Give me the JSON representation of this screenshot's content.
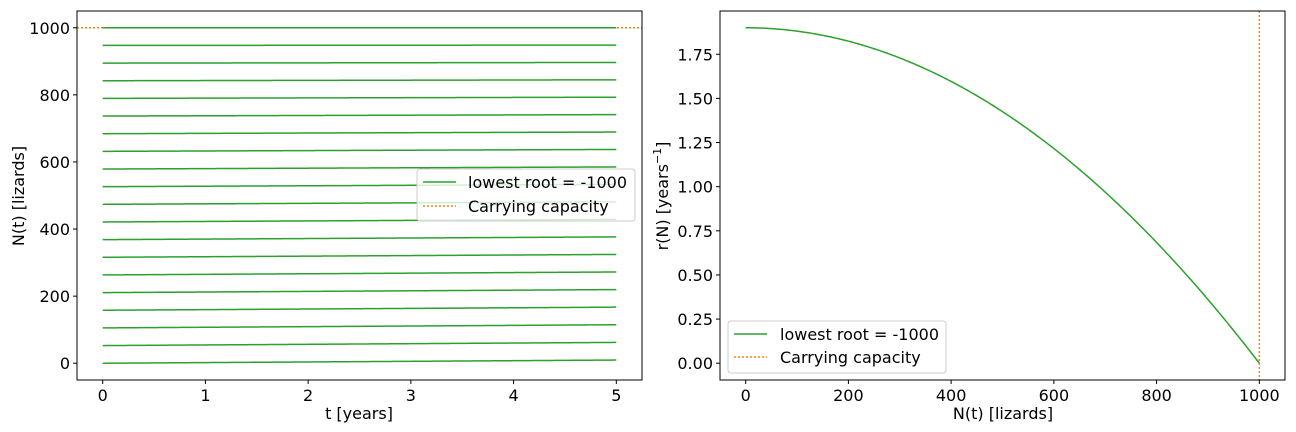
{
  "colors": {
    "model": "#2ca02c",
    "capacity": "#ff7f0e"
  },
  "chart_data": [
    {
      "type": "line",
      "xlabel": "t [years]",
      "ylabel": "N(t) [lizards]",
      "xlim": [
        -0.25,
        5.25
      ],
      "ylim": [
        -50,
        1050
      ],
      "xticks": [
        0,
        1,
        2,
        3,
        4,
        5
      ],
      "yticks": [
        0,
        200,
        400,
        600,
        800,
        1000
      ],
      "grid": false,
      "legend_position": "center-right",
      "legend": [
        "lowest root = -1000",
        "Carrying capacity"
      ],
      "model": {
        "r_max": 1.9,
        "K": 1000,
        "lowest_root": -1000
      },
      "t_range": [
        0,
        5
      ],
      "initial_populations": [
        0,
        52.6,
        105.3,
        157.9,
        210.5,
        263.2,
        315.8,
        368.4,
        421.1,
        473.7,
        526.3,
        578.9,
        631.6,
        684.2,
        736.8,
        789.5,
        842.1,
        894.7,
        947.4,
        1000
      ],
      "carrying_capacity": 1000
    },
    {
      "type": "line",
      "xlabel": "N(t) [lizards]",
      "ylabel": "r(N) [years",
      "ylabel_sup": "−1",
      "ylabel_end": "]",
      "xlim": [
        -50,
        1050
      ],
      "ylim": [
        -0.095,
        1.995
      ],
      "xticks": [
        0,
        200,
        400,
        600,
        800,
        1000
      ],
      "yticks": [
        "0.00",
        "0.25",
        "0.50",
        "0.75",
        "1.00",
        "1.25",
        "1.50",
        "1.75"
      ],
      "grid": false,
      "legend_position": "lower-left",
      "legend": [
        "lowest root = -1000",
        "Carrying capacity"
      ],
      "model": {
        "r_max": 1.9,
        "K": 1000,
        "lowest_root": -1000
      },
      "n_range": [
        0,
        1000
      ],
      "carrying_capacity": 1000
    }
  ]
}
